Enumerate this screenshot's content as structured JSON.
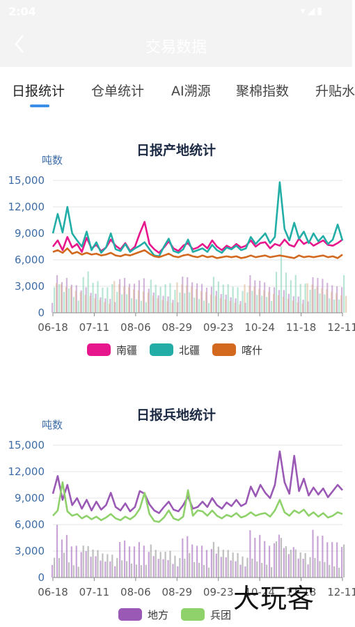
{
  "status_bar": {
    "time": "2:04"
  },
  "header": {
    "back_icon": "chevron-left-icon",
    "title": "交易数据"
  },
  "tabs": [
    {
      "label": "日报统计",
      "active": true
    },
    {
      "label": "仓单统计",
      "active": false
    },
    {
      "label": "AI溯源",
      "active": false
    },
    {
      "label": "聚棉指数",
      "active": false
    },
    {
      "label": "升贴水",
      "active": false
    }
  ],
  "colors": {
    "accent": "#3a8ee6",
    "nanjiang": "#e8168c",
    "beijiang": "#22aea6",
    "kashi": "#d2691e",
    "difang": "#9b59b6",
    "bingtuan": "#8fd16a",
    "axis_text": "#3e6ca6"
  },
  "chart_data": [
    {
      "type": "line",
      "title": "日报产地统计",
      "ylabel": "吨数",
      "ylim": [
        0,
        15000
      ],
      "yticks": [
        "15,000",
        "12,000",
        "9,000",
        "6,000",
        "3,000",
        "0"
      ],
      "xticks": [
        "06-18",
        "07-11",
        "08-06",
        "08-29",
        "09-23",
        "10-24",
        "11-18",
        "12-11"
      ],
      "series": [
        {
          "name": "南疆",
          "values": [
            7500,
            8200,
            7100,
            8600,
            7400,
            7800,
            6900,
            8500,
            7300,
            7700,
            7000,
            7400,
            8300,
            7600,
            7200,
            7900,
            7000,
            7500,
            9000,
            10300,
            7800,
            7200,
            6800,
            7400,
            8100,
            7300,
            7000,
            7600,
            7900,
            7200,
            7400,
            7800,
            7300,
            8200,
            7500,
            7100,
            7600,
            7300,
            7800,
            7400,
            7600,
            8200,
            7500,
            7900,
            8000,
            7300,
            7800,
            7600,
            8300,
            7700,
            7500,
            8400,
            7800,
            8100,
            7600,
            7900,
            8200,
            7700,
            7600,
            7900,
            8300
          ]
        },
        {
          "name": "北疆",
          "values": [
            9000,
            11200,
            9100,
            12000,
            9000,
            8200,
            7500,
            9200,
            7100,
            8000,
            6800,
            7400,
            9000,
            7200,
            7000,
            7800,
            6900,
            7300,
            7600,
            8000,
            7200,
            6500,
            6400,
            7500,
            8400,
            7000,
            6800,
            7200,
            8300,
            6900,
            7100,
            7300,
            6900,
            7700,
            7100,
            6800,
            7400,
            7200,
            7600,
            7100,
            7300,
            8600,
            7800,
            8400,
            9000,
            7900,
            8600,
            14800,
            9500,
            8200,
            10200,
            8400,
            9200,
            7900,
            9000,
            8100,
            8700,
            7800,
            8300,
            10000,
            8200
          ]
        },
        {
          "name": "喀什",
          "values": [
            6900,
            7100,
            6800,
            7300,
            6700,
            6900,
            6600,
            6800,
            6600,
            6700,
            6500,
            6600,
            6800,
            6500,
            6400,
            6600,
            6500,
            6700,
            6900,
            7100,
            6700,
            6400,
            6300,
            6500,
            6700,
            6400,
            6300,
            6500,
            6600,
            6400,
            6300,
            6500,
            6300,
            6400,
            6200,
            6300,
            6400,
            6300,
            6400,
            6200,
            6300,
            6500,
            6300,
            6400,
            6500,
            6300,
            6400,
            6500,
            6400,
            6300,
            6200,
            6500,
            6300,
            6400,
            6300,
            6400,
            6500,
            6300,
            6400,
            6200,
            6600
          ]
        }
      ],
      "legend": "bottom"
    },
    {
      "type": "line",
      "title": "日报兵地统计",
      "ylabel": "吨数",
      "ylim": [
        0,
        15000
      ],
      "yticks": [
        "15,000",
        "12,000",
        "9,000",
        "6,000",
        "3,000",
        "0"
      ],
      "xticks": [
        "06-18",
        "07-11",
        "08-06",
        "08-29",
        "09-23",
        "10-24",
        "11-18",
        "12-11"
      ],
      "series": [
        {
          "name": "地方",
          "values": [
            9500,
            11500,
            8800,
            10500,
            8200,
            9000,
            7800,
            8800,
            7600,
            8600,
            7700,
            8200,
            9600,
            8000,
            7600,
            8400,
            7500,
            8000,
            9800,
            9500,
            8300,
            7600,
            7300,
            8000,
            8600,
            7700,
            7500,
            8200,
            9200,
            7800,
            8000,
            8600,
            8000,
            9000,
            8200,
            7800,
            8500,
            8100,
            8800,
            8100,
            8400,
            10300,
            9200,
            10500,
            9600,
            9000,
            10500,
            14300,
            10800,
            9500,
            13800,
            9800,
            11200,
            9300,
            10200,
            9400,
            10100,
            9100,
            9800,
            10500,
            9900
          ]
        },
        {
          "name": "兵团",
          "values": [
            7000,
            7600,
            10800,
            7500,
            7000,
            7200,
            6700,
            7000,
            6600,
            6900,
            6500,
            6800,
            7200,
            6700,
            6500,
            6900,
            6600,
            7000,
            7800,
            9600,
            7200,
            6400,
            6300,
            6800,
            7600,
            6700,
            6500,
            6900,
            9900,
            7000,
            7600,
            7500,
            7000,
            7600,
            7000,
            6700,
            7100,
            6900,
            7300,
            6800,
            7000,
            7400,
            7000,
            7200,
            7300,
            6900,
            7600,
            8800,
            7400,
            7000,
            7600,
            7300,
            7700,
            7000,
            7400,
            6900,
            7300,
            6800,
            7000,
            7400,
            7200
          ]
        }
      ],
      "legend": "bottom"
    }
  ],
  "watermark": "大玩客"
}
